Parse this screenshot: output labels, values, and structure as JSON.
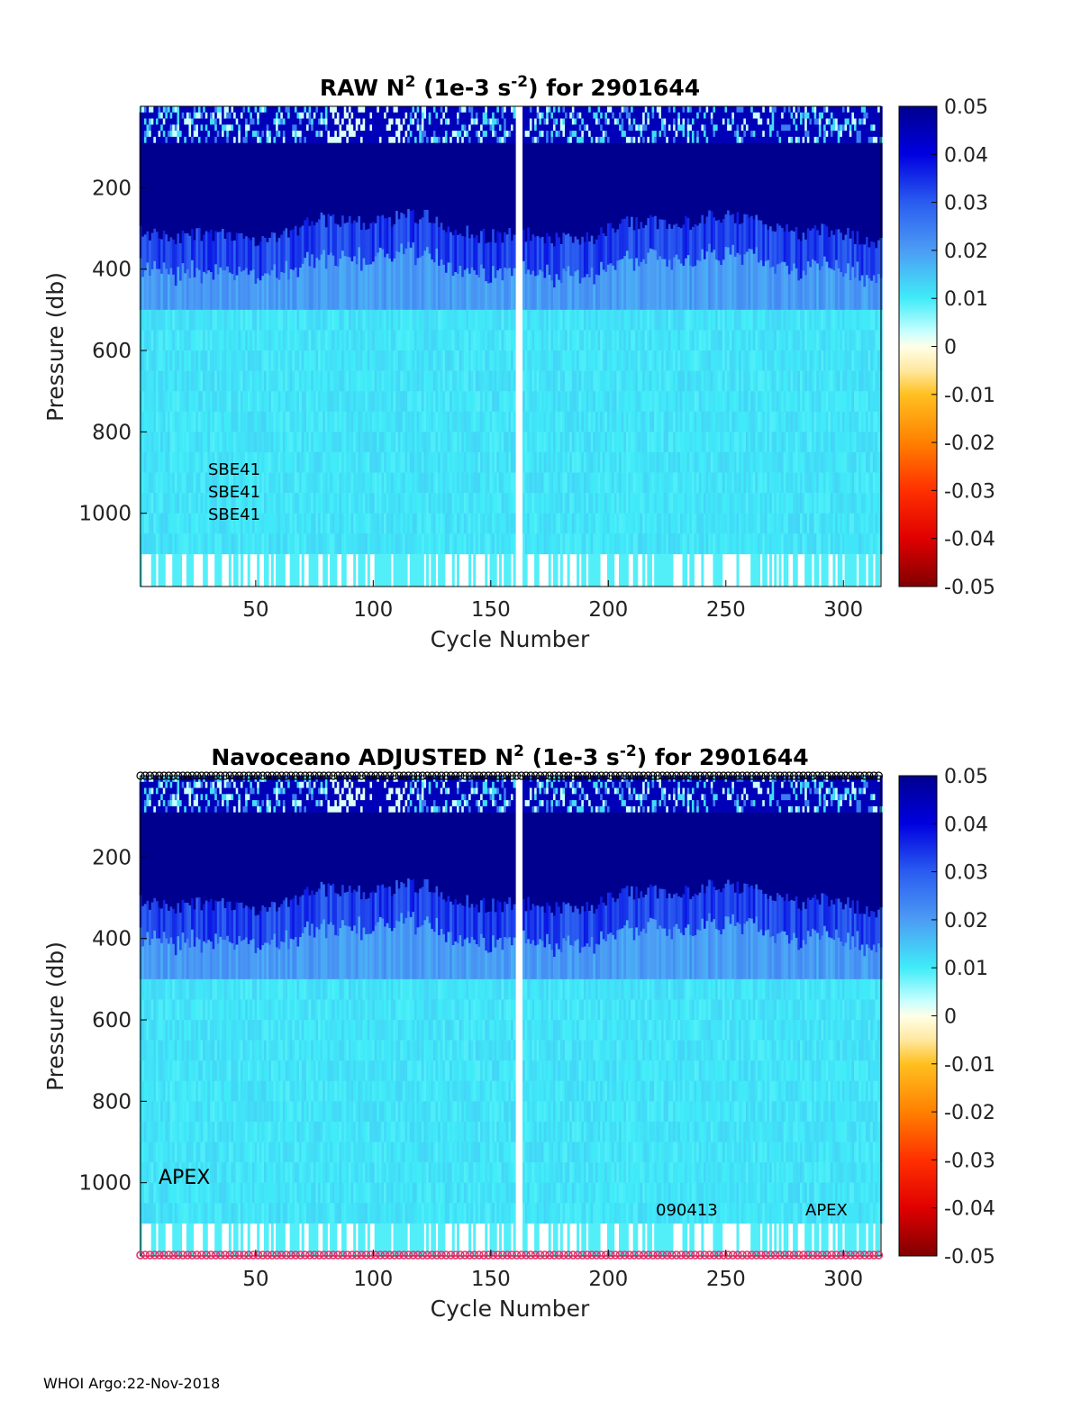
{
  "footer": "WHOI Argo:22-Nov-2018",
  "colors": {
    "background": "#ffffff",
    "deep_blue": "#00008f",
    "cyan": "#80ffff",
    "gap": "#ffffff",
    "marker_top": "#000000",
    "marker_bottom": "#e8306a"
  },
  "colorbar": {
    "ticks": [
      "0.05",
      "0.04",
      "0.03",
      "0.02",
      "0.01",
      "0",
      "-0.01",
      "-0.02",
      "-0.03",
      "-0.04",
      "-0.05"
    ],
    "stops": [
      {
        "v": 0.05,
        "c": "#00008f"
      },
      {
        "v": 0.04,
        "c": "#0000e0"
      },
      {
        "v": 0.03,
        "c": "#2a5cf0"
      },
      {
        "v": 0.02,
        "c": "#4c9cf4"
      },
      {
        "v": 0.01,
        "c": "#40ecf8"
      },
      {
        "v": 0.003,
        "c": "#c8ffff"
      },
      {
        "v": 0.0,
        "c": "#ffffe8"
      },
      {
        "v": -0.005,
        "c": "#ffe8a0"
      },
      {
        "v": -0.01,
        "c": "#ffc020"
      },
      {
        "v": -0.02,
        "c": "#ff8000"
      },
      {
        "v": -0.03,
        "c": "#ff3000"
      },
      {
        "v": -0.04,
        "c": "#e00000"
      },
      {
        "v": -0.05,
        "c": "#800000"
      }
    ]
  },
  "chart_data": [
    {
      "type": "heatmap",
      "title_parts": [
        "RAW N",
        "2",
        " (1e-3 s",
        "-2",
        ") for 2901644"
      ],
      "xlabel": "Cycle Number",
      "ylabel": "Pressure (db)",
      "xlim": [
        1,
        316
      ],
      "ylim": [
        1180,
        0
      ],
      "xticks": [
        "50",
        "100",
        "150",
        "200",
        "250",
        "300"
      ],
      "xtick_values": [
        50,
        100,
        150,
        200,
        250,
        300
      ],
      "yticks": [
        "200",
        "400",
        "600",
        "800",
        "1000"
      ],
      "ytick_values": [
        200,
        400,
        600,
        800,
        1000
      ],
      "clim": [
        -0.05,
        0.05
      ],
      "missing_cycle_range": [
        161,
        163
      ],
      "max_pressure": 1180,
      "layers": [
        {
          "p_top": 0,
          "p_bottom": 90,
          "n2_mean": 0.035,
          "note": "mixed-layer speckle, cyan/white patches"
        },
        {
          "p_top": 90,
          "p_bottom": 300,
          "n2_mean": 0.05
        },
        {
          "p_top": 300,
          "p_bottom": 400,
          "n2_mean": 0.035
        },
        {
          "p_top": 400,
          "p_bottom": 500,
          "n2_mean": 0.02
        },
        {
          "p_top": 500,
          "p_bottom": 1000,
          "n2_mean": 0.011
        },
        {
          "p_top": 1000,
          "p_bottom": 1180,
          "n2_mean": 0.008
        }
      ],
      "annotations": [
        "SBE41",
        "SBE41",
        "SBE41"
      ]
    },
    {
      "type": "heatmap",
      "title_parts": [
        "Navoceano  ADJUSTED N",
        "2",
        " (1e-3 s",
        "-2",
        ") for 2901644"
      ],
      "xlabel": "Cycle Number",
      "ylabel": "Pressure (db)",
      "xlim": [
        1,
        316
      ],
      "ylim": [
        1180,
        0
      ],
      "xticks": [
        "50",
        "100",
        "150",
        "200",
        "250",
        "300"
      ],
      "xtick_values": [
        50,
        100,
        150,
        200,
        250,
        300
      ],
      "yticks": [
        "200",
        "400",
        "600",
        "800",
        "1000"
      ],
      "ytick_values": [
        200,
        400,
        600,
        800,
        1000
      ],
      "clim": [
        -0.05,
        0.05
      ],
      "missing_cycle_range": [
        161,
        163
      ],
      "max_pressure": 1180,
      "layers": [
        {
          "p_top": 0,
          "p_bottom": 90,
          "n2_mean": 0.035,
          "note": "mixed-layer speckle, cyan/white patches"
        },
        {
          "p_top": 90,
          "p_bottom": 300,
          "n2_mean": 0.05
        },
        {
          "p_top": 300,
          "p_bottom": 400,
          "n2_mean": 0.035
        },
        {
          "p_top": 400,
          "p_bottom": 500,
          "n2_mean": 0.02
        },
        {
          "p_top": 500,
          "p_bottom": 1000,
          "n2_mean": 0.011
        },
        {
          "p_top": 1000,
          "p_bottom": 1180,
          "n2_mean": 0.008
        }
      ],
      "annotations": [
        "APEX",
        "090413",
        "APEX"
      ],
      "marker_rows": [
        "top: black circle per cycle",
        "bottom: pink circle per cycle"
      ]
    }
  ]
}
